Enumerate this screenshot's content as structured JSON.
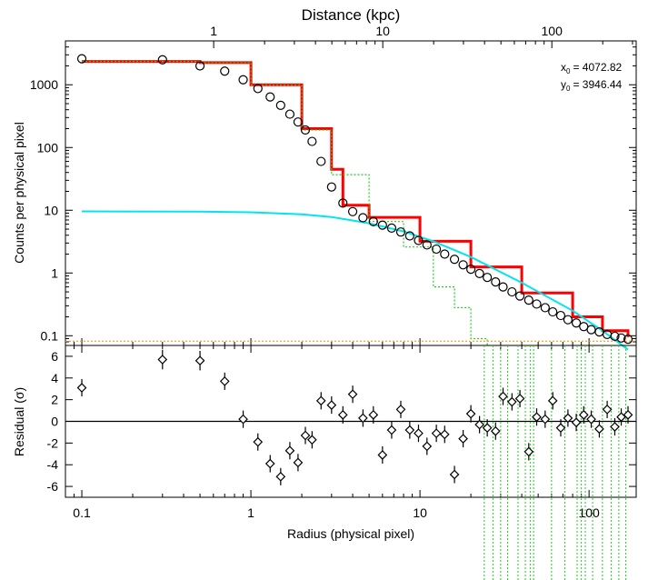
{
  "chart_data": [
    {
      "panel": "top",
      "type": "scatter",
      "top_axis_label": "Distance (kpc)",
      "top_ticks": [
        "1",
        "10",
        "100"
      ],
      "ylabel": "Counts per physical pixel",
      "y_scale": "log",
      "x_scale": "log",
      "ylim": [
        0.07,
        5000
      ],
      "xlim": [
        0.08,
        190
      ],
      "y_ticks": [
        "0.1",
        "1",
        "10",
        "100",
        "1000"
      ],
      "annotations": {
        "x0_label": "x",
        "x0_sub": "0",
        "x0_value": "= 4072.82",
        "y0_label": "y",
        "y0_sub": "0",
        "y0_value": "= 3946.44"
      },
      "colors": {
        "model_total": "#ff0000",
        "beta_component": "#00e5ee",
        "core_component": "#22cc22",
        "background": "#ff9900"
      },
      "data_points": {
        "x": [
          0.1,
          0.3,
          0.5,
          0.7,
          0.9,
          1.1,
          1.3,
          1.5,
          1.7,
          1.9,
          2.1,
          2.3,
          2.6,
          3.0,
          3.5,
          4.0,
          4.6,
          5.3,
          6.0,
          6.8,
          7.7,
          8.7,
          9.8,
          11,
          12.5,
          14,
          16,
          18,
          20,
          22.5,
          25,
          28,
          31,
          35,
          39,
          44,
          49,
          55,
          61,
          68,
          75,
          84,
          93,
          103,
          115,
          128,
          142,
          155,
          170
        ],
        "y": [
          2600,
          2500,
          2000,
          1650,
          1200,
          870,
          640,
          470,
          340,
          255,
          190,
          125,
          60,
          23.5,
          13,
          9.5,
          7.6,
          6.6,
          5.8,
          5.2,
          4.5,
          3.9,
          3.3,
          2.8,
          2.4,
          2.0,
          1.65,
          1.35,
          1.15,
          0.98,
          0.85,
          0.72,
          0.6,
          0.5,
          0.43,
          0.37,
          0.32,
          0.28,
          0.24,
          0.21,
          0.18,
          0.16,
          0.14,
          0.125,
          0.115,
          0.105,
          0.098,
          0.092,
          0.088
        ]
      },
      "series": [
        {
          "name": "",
          "role": "model_total",
          "x": [
            0.1,
            0.5,
            1,
            2,
            3,
            3.5,
            5,
            10,
            20,
            40,
            80,
            120,
            170
          ],
          "y": [
            2350,
            2250,
            1000,
            200,
            45,
            12,
            7.7,
            3.2,
            1.25,
            0.48,
            0.2,
            0.12,
            0.095
          ]
        },
        {
          "name": "",
          "role": "beta_component",
          "x": [
            0.1,
            0.5,
            1,
            2,
            3,
            5,
            8,
            12,
            20,
            40,
            80,
            120,
            170
          ],
          "y": [
            9.6,
            9.5,
            9.3,
            8.6,
            7.8,
            6.2,
            4.6,
            3.2,
            1.8,
            0.7,
            0.25,
            0.12,
            0.06
          ]
        },
        {
          "name": "",
          "role": "core_component",
          "x": [
            0.1,
            0.5,
            1,
            2,
            3,
            5,
            8,
            12,
            16,
            20,
            25
          ],
          "y": [
            2350,
            2250,
            990,
            190,
            37,
            6.6,
            2.6,
            0.6,
            0.28,
            0.09,
            0.07
          ]
        },
        {
          "name": "",
          "role": "background",
          "x": [
            0.08,
            190
          ],
          "y": [
            0.082,
            0.082
          ]
        }
      ]
    },
    {
      "panel": "bottom",
      "type": "scatter",
      "xlabel": "Radius (physical pixel)",
      "ylabel": "Residual (σ)",
      "x_scale": "log",
      "xlim": [
        0.08,
        190
      ],
      "ylim": [
        -7,
        7
      ],
      "x_ticks": [
        "0.1",
        "1",
        "10",
        "100"
      ],
      "y_ticks": [
        "6",
        "4",
        "2",
        "0",
        "-2",
        "-4",
        "-6"
      ],
      "zero_line": true,
      "data_points": {
        "x": [
          0.1,
          0.3,
          0.5,
          0.7,
          0.9,
          1.1,
          1.3,
          1.5,
          1.7,
          1.9,
          2.1,
          2.3,
          2.6,
          3.0,
          3.5,
          4.0,
          4.6,
          5.3,
          6.0,
          6.8,
          7.7,
          8.7,
          9.8,
          11,
          12.5,
          14,
          16,
          18,
          20,
          22.5,
          25,
          28,
          31,
          35,
          39,
          44,
          49,
          55,
          61,
          68,
          75,
          84,
          93,
          103,
          115,
          128,
          142,
          155,
          170
        ],
        "y": [
          3.1,
          5.7,
          5.6,
          3.7,
          0.2,
          -1.9,
          -3.9,
          -5.1,
          -2.7,
          -3.8,
          -1.3,
          -1.7,
          1.9,
          1.5,
          0.6,
          2.5,
          0.3,
          0.6,
          -3.1,
          -0.8,
          1.1,
          -0.8,
          -1.1,
          -2.3,
          -1.1,
          -1.2,
          -4.9,
          -1.6,
          0.7,
          -0.3,
          -0.6,
          -0.9,
          2.3,
          1.8,
          2.1,
          -2.8,
          0.4,
          0.2,
          1.9,
          -0.6,
          0.3,
          -0.1,
          0.6,
          0.2,
          -0.7,
          1.1,
          -0.5,
          0.4,
          0.6
        ],
        "err": [
          0.8,
          0.9,
          0.9,
          0.8,
          0.8,
          0.8,
          0.8,
          0.8,
          0.8,
          0.8,
          0.8,
          0.8,
          0.8,
          0.8,
          0.8,
          0.8,
          0.8,
          0.8,
          0.8,
          0.8,
          0.8,
          0.8,
          0.8,
          0.8,
          0.8,
          0.8,
          0.8,
          0.8,
          0.8,
          0.8,
          0.8,
          0.8,
          0.8,
          0.8,
          0.8,
          0.8,
          0.8,
          0.8,
          0.8,
          0.8,
          0.8,
          0.8,
          0.8,
          0.8,
          0.8,
          0.8,
          0.8,
          0.8,
          0.8
        ]
      }
    }
  ]
}
